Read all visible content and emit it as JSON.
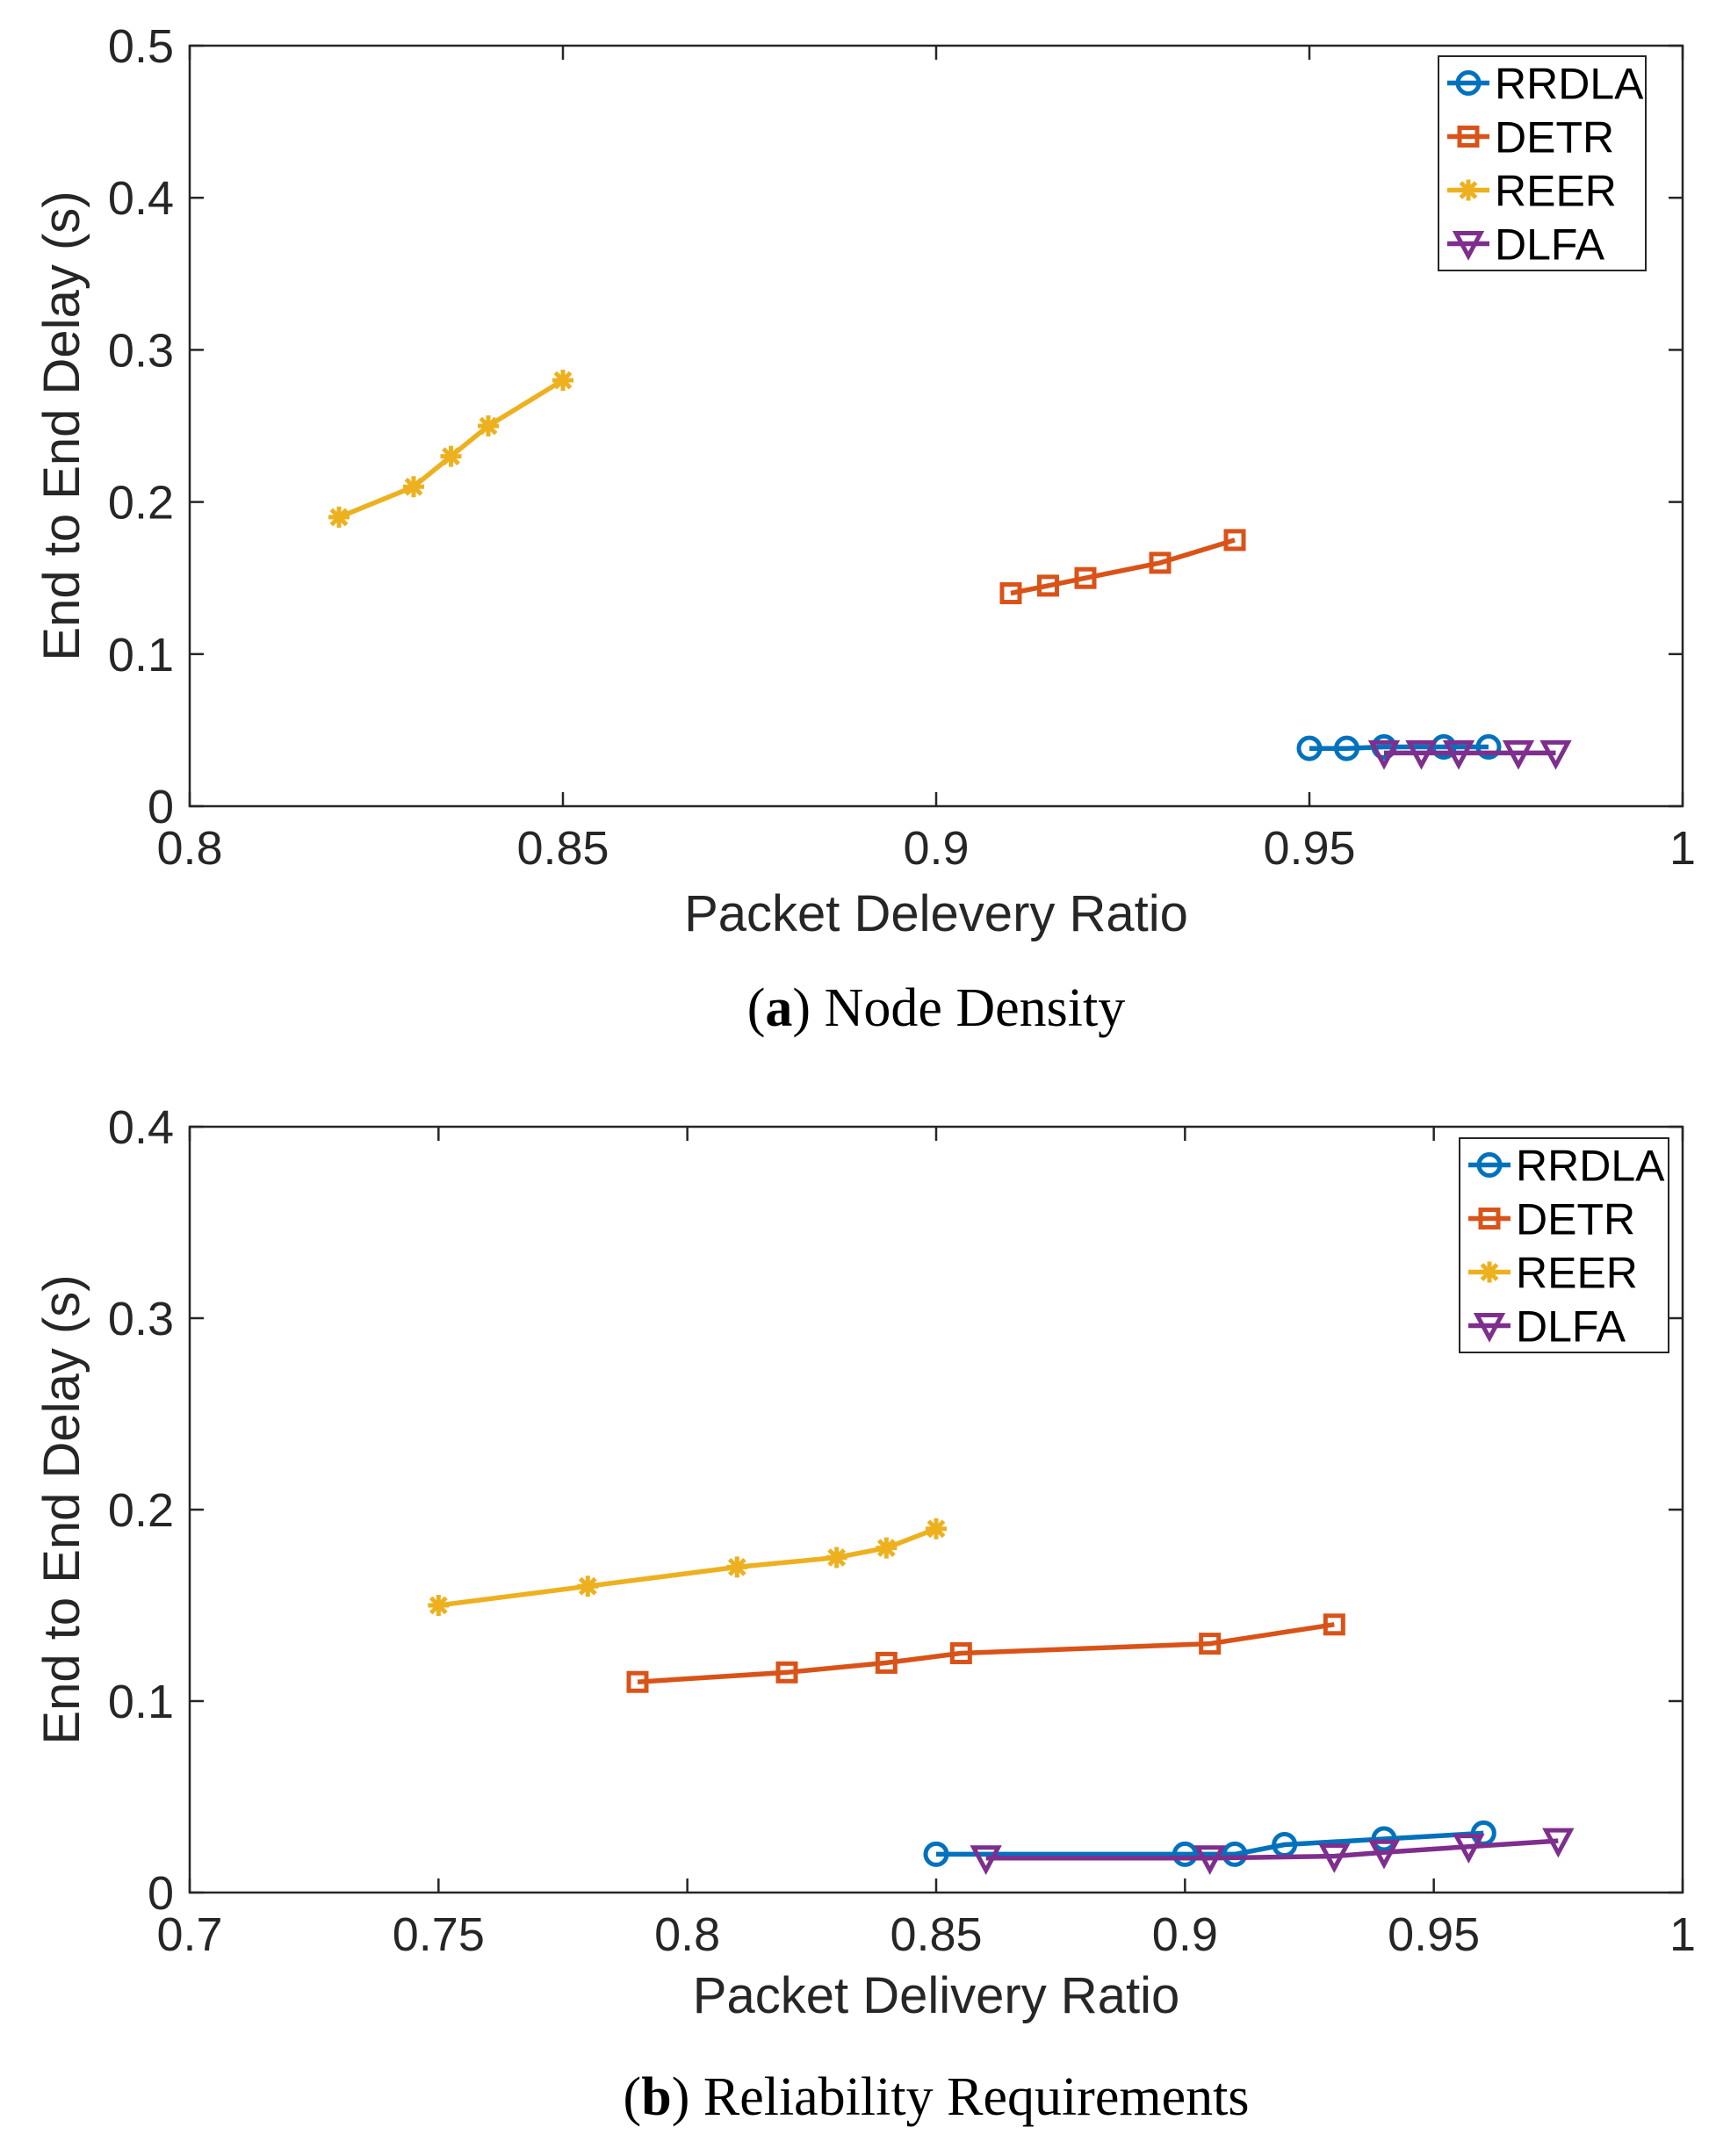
{
  "colors": {
    "RRDLA": "#0072BD",
    "DETR": "#D95319",
    "REER": "#EDB120",
    "DLFA": "#7E2F8E",
    "axis": "#262626"
  },
  "chart_data": [
    {
      "type": "line",
      "caption": {
        "letter": "a",
        "text": "Node Density"
      },
      "xlabel": "Packet Delevery Ratio",
      "ylabel": "End to End Delay (s)",
      "xlim": [
        0.8,
        1.0
      ],
      "ylim": [
        0,
        0.5
      ],
      "xticks": [
        "0.8",
        "0.85",
        "0.9",
        "0.95",
        "1"
      ],
      "yticks": [
        "0",
        "0.1",
        "0.2",
        "0.3",
        "0.4",
        "0.5"
      ],
      "legend_position": "top-right",
      "series": [
        {
          "name": "RRDLA",
          "marker": "circle",
          "points": [
            [
              0.95,
              0.038
            ],
            [
              0.955,
              0.038
            ],
            [
              0.96,
              0.039
            ],
            [
              0.968,
              0.039
            ],
            [
              0.974,
              0.039
            ]
          ]
        },
        {
          "name": "DETR",
          "marker": "square",
          "points": [
            [
              0.91,
              0.14
            ],
            [
              0.915,
              0.145
            ],
            [
              0.92,
              0.15
            ],
            [
              0.93,
              0.16
            ],
            [
              0.94,
              0.175
            ]
          ]
        },
        {
          "name": "REER",
          "marker": "asterisk",
          "points": [
            [
              0.82,
              0.19
            ],
            [
              0.83,
              0.21
            ],
            [
              0.835,
              0.23
            ],
            [
              0.84,
              0.25
            ],
            [
              0.85,
              0.28
            ]
          ]
        },
        {
          "name": "DLFA",
          "marker": "triangle-down",
          "points": [
            [
              0.96,
              0.035
            ],
            [
              0.965,
              0.035
            ],
            [
              0.97,
              0.035
            ],
            [
              0.978,
              0.035
            ],
            [
              0.983,
              0.035
            ]
          ]
        }
      ]
    },
    {
      "type": "line",
      "caption": {
        "letter": "b",
        "text": "Reliability Requirements"
      },
      "xlabel": "Packet Delivery Ratio",
      "ylabel": "End to End Delay (s)",
      "xlim": [
        0.7,
        1.0
      ],
      "ylim": [
        0,
        0.4
      ],
      "xticks": [
        "0.7",
        "0.75",
        "0.8",
        "0.85",
        "0.9",
        "0.95",
        "1"
      ],
      "yticks": [
        "0",
        "0.1",
        "0.2",
        "0.3",
        "0.4"
      ],
      "legend_position": "top-right",
      "series": [
        {
          "name": "RRDLA",
          "marker": "circle",
          "points": [
            [
              0.85,
              0.02
            ],
            [
              0.9,
              0.02
            ],
            [
              0.91,
              0.02
            ],
            [
              0.92,
              0.025
            ],
            [
              0.94,
              0.028
            ],
            [
              0.96,
              0.031
            ]
          ]
        },
        {
          "name": "DETR",
          "marker": "square",
          "points": [
            [
              0.79,
              0.11
            ],
            [
              0.82,
              0.115
            ],
            [
              0.84,
              0.12
            ],
            [
              0.855,
              0.125
            ],
            [
              0.905,
              0.13
            ],
            [
              0.93,
              0.14
            ]
          ]
        },
        {
          "name": "REER",
          "marker": "asterisk",
          "points": [
            [
              0.75,
              0.15
            ],
            [
              0.78,
              0.16
            ],
            [
              0.81,
              0.17
            ],
            [
              0.83,
              0.175
            ],
            [
              0.84,
              0.18
            ],
            [
              0.85,
              0.19
            ]
          ]
        },
        {
          "name": "DLFA",
          "marker": "triangle-down",
          "points": [
            [
              0.86,
              0.018
            ],
            [
              0.905,
              0.018
            ],
            [
              0.93,
              0.019
            ],
            [
              0.94,
              0.021
            ],
            [
              0.957,
              0.024
            ],
            [
              0.975,
              0.027
            ]
          ]
        }
      ]
    }
  ]
}
